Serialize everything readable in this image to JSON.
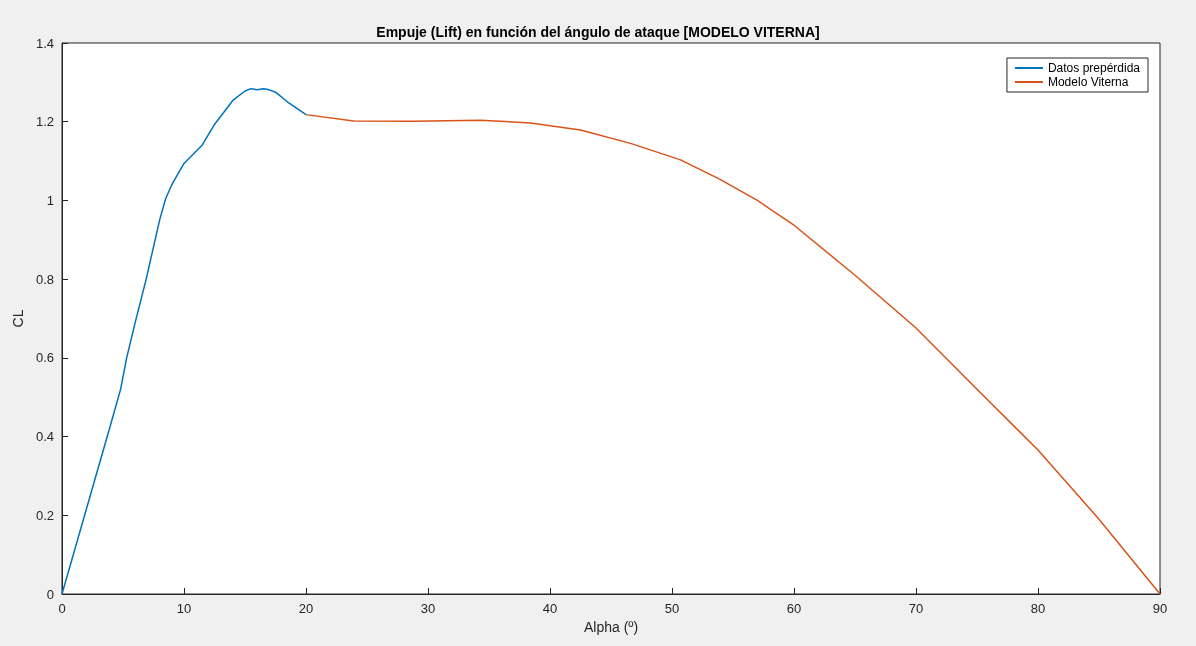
{
  "chart_data": {
    "type": "line",
    "title": "Empuje (Lift) en función del ángulo de ataque [MODELO VITERNA]",
    "xlabel": "Alpha (º)",
    "ylabel": "CL",
    "xlim": [
      0,
      90
    ],
    "xticks": [
      0,
      10,
      20,
      30,
      40,
      50,
      60,
      70,
      80,
      90
    ],
    "ylim": [
      0,
      1.4
    ],
    "yticks": [
      0,
      0.2,
      0.4,
      0.6,
      0.8,
      1,
      1.2,
      1.4
    ],
    "grid": false,
    "legend": "top right",
    "marker": "none",
    "line_style": "solid",
    "series": [
      {
        "name": "Datos prepérdida",
        "color": "#0072bd",
        "x": [
          0,
          1,
          2,
          3,
          4,
          4.8,
          5.3,
          6,
          6.9,
          8,
          8.5,
          9,
          10,
          11.5,
          12.5,
          14,
          15,
          15.5,
          16,
          16.5,
          17,
          17.5,
          18.5,
          20
        ],
        "values": [
          0,
          0.108,
          0.216,
          0.324,
          0.432,
          0.52,
          0.6,
          0.69,
          0.8,
          0.95,
          1.005,
          1.04,
          1.094,
          1.141,
          1.193,
          1.254,
          1.278,
          1.284,
          1.281,
          1.284,
          1.281,
          1.275,
          1.25,
          1.218
        ]
      },
      {
        "name": "Modelo Viterna",
        "color": "#d95319",
        "x": [
          20,
          23.9,
          28.8,
          34.3,
          38.4,
          42.5,
          46.6,
          50.7,
          53.9,
          57,
          60,
          65,
          70,
          75,
          80,
          85,
          90
        ],
        "values": [
          1.218,
          1.202,
          1.201,
          1.204,
          1.197,
          1.179,
          1.145,
          1.103,
          1.054,
          1.0,
          0.937,
          0.81,
          0.676,
          0.52,
          0.366,
          0.19,
          0
        ]
      }
    ]
  }
}
